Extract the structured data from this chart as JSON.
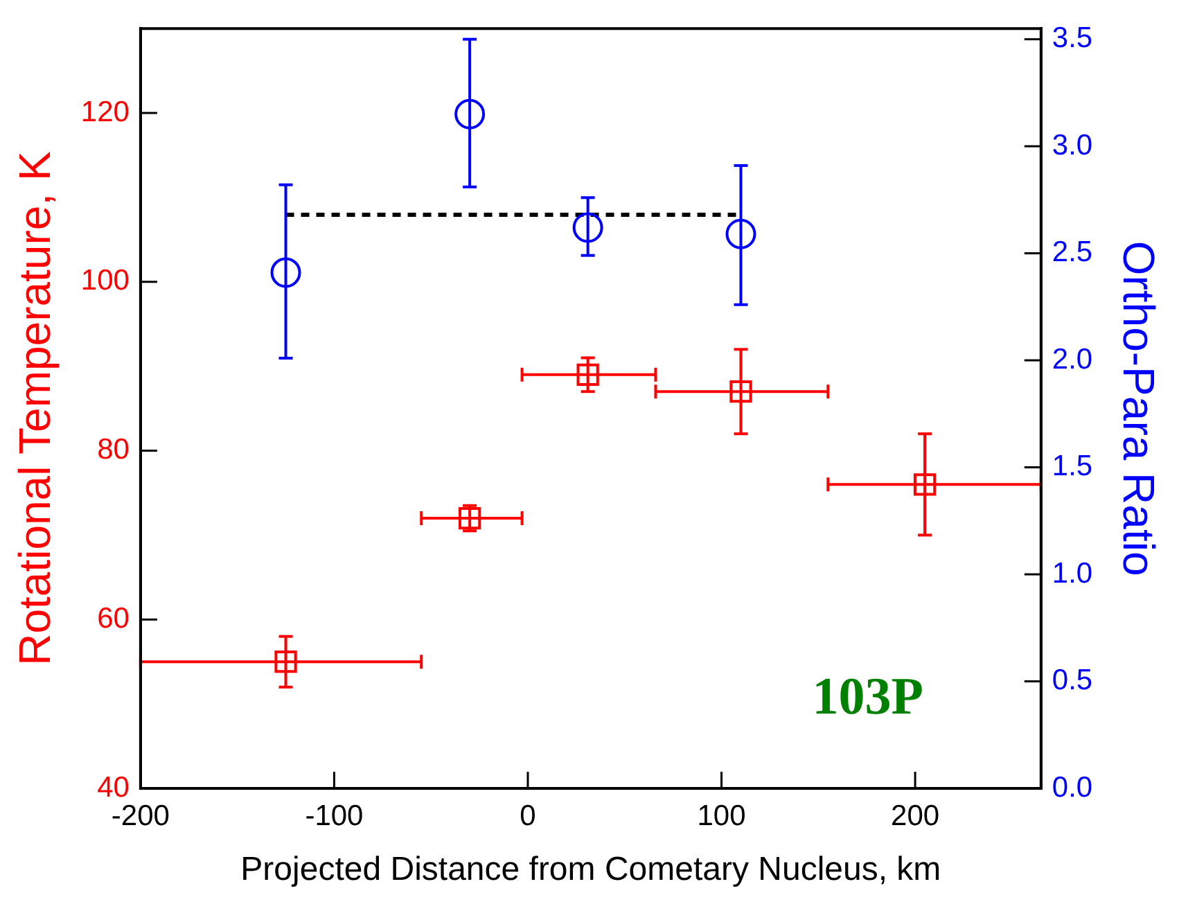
{
  "chart_data": {
    "type": "scatter",
    "xlabel": "Projected Distance from Cometary Nucleus, km",
    "ylabel": "Rotational Temperature, K",
    "y2label": "Ortho-Para Ratio",
    "xlim": [
      -200,
      265
    ],
    "xticks": [
      -200,
      -100,
      0,
      100,
      200
    ],
    "ylim": [
      40,
      130
    ],
    "yticks": [
      40,
      60,
      80,
      100,
      120
    ],
    "y2lim": [
      0,
      3.55
    ],
    "y2ticks": [
      {
        "value": 0,
        "label": "0.0"
      },
      {
        "value": 0.5,
        "label": "0.5"
      },
      {
        "value": 1,
        "label": "1.0"
      },
      {
        "value": 1.5,
        "label": "1.5"
      },
      {
        "value": 2,
        "label": "2.0"
      },
      {
        "value": 2.5,
        "label": "2.5"
      },
      {
        "value": 3,
        "label": "3.0"
      },
      {
        "value": 3.5,
        "label": "3.5"
      }
    ],
    "grid": false,
    "legend": false,
    "annotations": [
      "103P"
    ],
    "series": [
      {
        "type": "scatter",
        "color": "#ff0000",
        "marker": "square",
        "x": [
          -125,
          -30,
          31,
          110,
          205
        ],
        "values": [
          55,
          72,
          89,
          87,
          76
        ],
        "errors": [
          [
            52,
            58
          ],
          [
            70.5,
            73.5
          ],
          [
            87,
            91
          ],
          [
            82,
            92
          ],
          [
            70,
            82
          ]
        ],
        "xerrors": [
          [
            -200,
            -55
          ],
          [
            -55,
            -3
          ],
          [
            -3,
            66
          ],
          [
            66,
            155
          ],
          [
            155,
            265
          ]
        ]
      },
      {
        "type": "scatter",
        "color": "#0000ff",
        "marker": "circle",
        "axis": "y2",
        "x": [
          -125,
          -30,
          31,
          110
        ],
        "values": [
          2.41,
          3.15,
          2.62,
          2.59
        ],
        "errors": [
          [
            2.01,
            2.82
          ],
          [
            2.81,
            3.5
          ],
          [
            2.49,
            2.76
          ],
          [
            2.26,
            2.91
          ]
        ]
      },
      {
        "type": "line",
        "color": "#000000",
        "marker": "none",
        "line_style": "dashed",
        "axis": "y2",
        "x": [
          -125,
          110
        ],
        "values": [
          2.68,
          2.68
        ]
      }
    ]
  }
}
